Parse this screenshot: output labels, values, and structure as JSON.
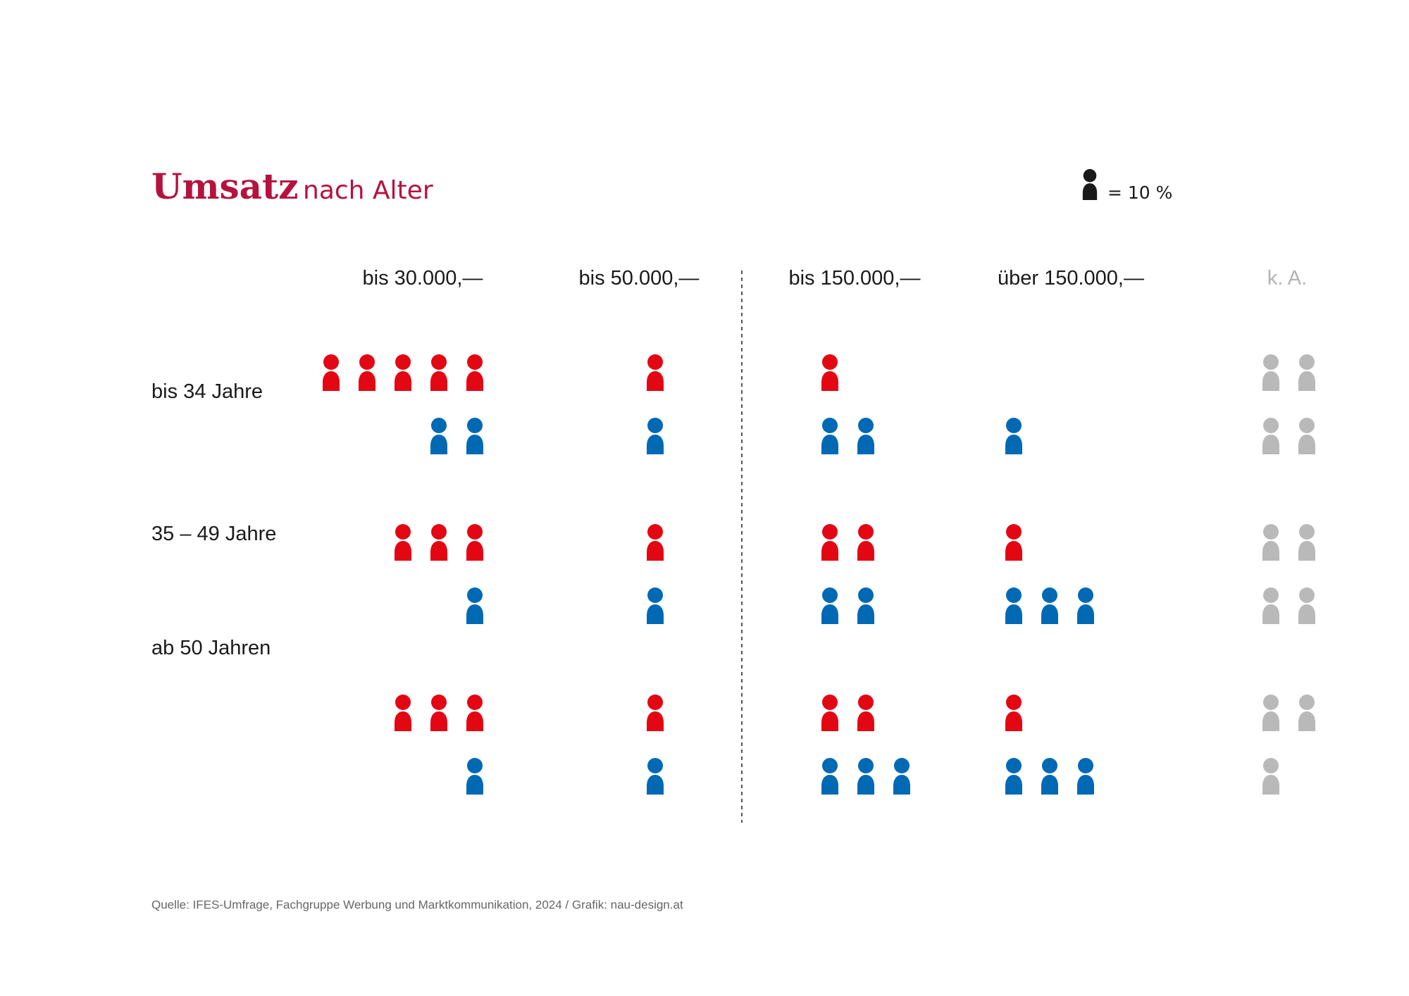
{
  "chart_data": {
    "type": "pictogram",
    "title": "Umsatz",
    "subtitle": "nach Alter",
    "legend": {
      "text": "= 10 %",
      "unit_percent": 10
    },
    "columns": [
      "bis 30.000,—",
      "bis 50.000,—",
      "bis 150.000,—",
      "über 150.000,—",
      "k. A."
    ],
    "row_labels": [
      "bis 34 Jahre",
      "35 – 49 Jahre",
      "ab 50 Jahren"
    ],
    "colors": {
      "red": "#e30613",
      "blue": "#0069b4",
      "grey": "#b9b9b9",
      "title": "#b5123e",
      "text": "#1a1a1a",
      "na_header": "#b3b3b3",
      "source": "#666666",
      "divider": "#555555"
    },
    "values": [
      {
        "group": "bis 34 Jahre",
        "red": [
          50,
          15,
          10,
          3,
          null
        ],
        "blue": [
          25,
          15,
          25,
          15,
          null
        ],
        "grey_top": 25,
        "grey_bottom": 20
      },
      {
        "group": "35 – 49 Jahre",
        "red": [
          30,
          15,
          25,
          10,
          null
        ],
        "blue": [
          15,
          10,
          25,
          30,
          null
        ],
        "grey_top": 20,
        "grey_bottom": 20
      },
      {
        "group": "ab 50 Jahren",
        "red": [
          30,
          15,
          25,
          10,
          null
        ],
        "blue": [
          15,
          15,
          30,
          30,
          null
        ],
        "grey_top": 25,
        "grey_bottom": 15
      }
    ]
  },
  "source": "Quelle: IFES-Umfrage, Fachgruppe Werbung und Marktkommunikation, 2024 / Grafik: nau-design.at"
}
